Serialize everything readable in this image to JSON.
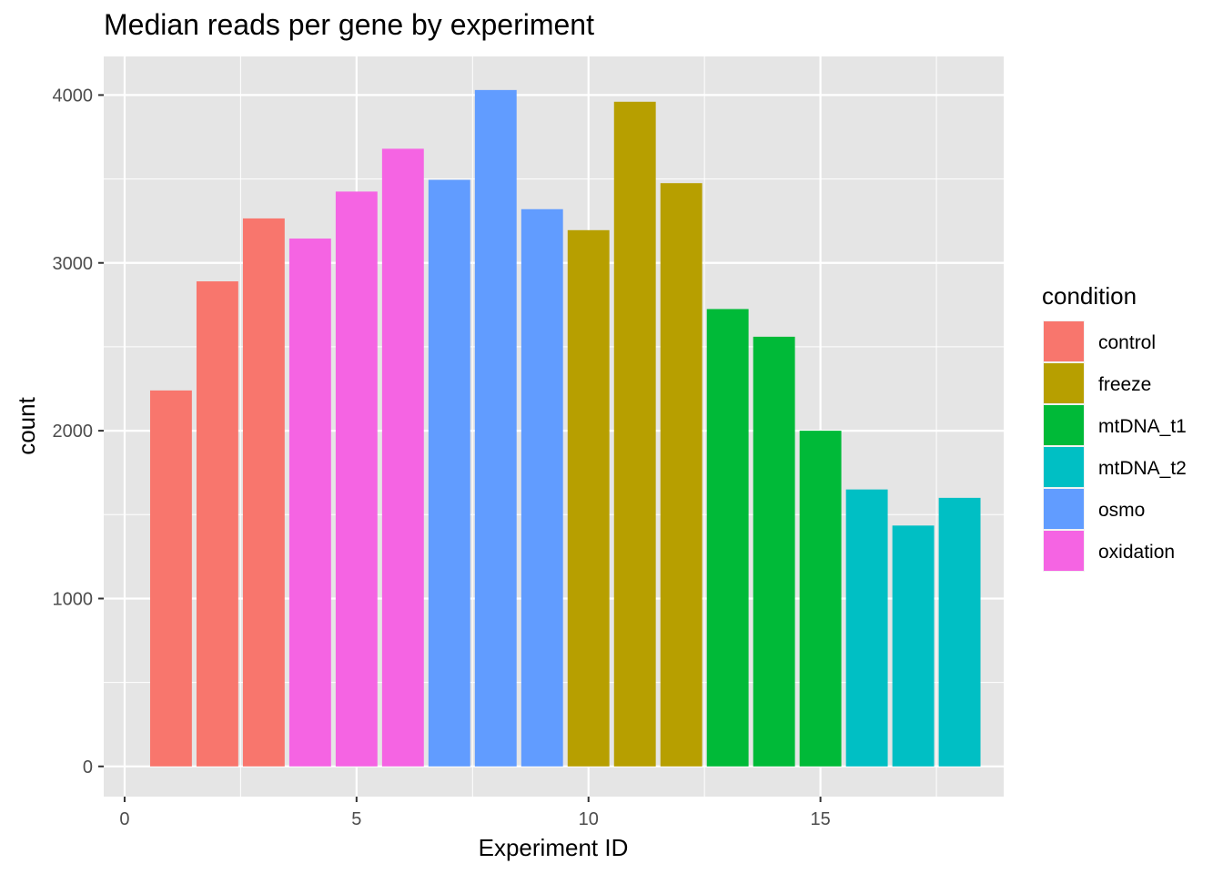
{
  "chart_data": {
    "type": "bar",
    "title": "Median reads per gene by experiment",
    "xlabel": "Experiment ID",
    "ylabel": "count",
    "xlim": [
      -0.45,
      18.95
    ],
    "ylim": [
      -180,
      4230
    ],
    "x_ticks": [
      0,
      5,
      10,
      15
    ],
    "y_ticks": [
      0,
      1000,
      2000,
      3000,
      4000
    ],
    "grid": true,
    "legend": {
      "title": "condition",
      "placement": "right",
      "entries": [
        {
          "name": "control",
          "color": "#F8766D"
        },
        {
          "name": "freeze",
          "color": "#B79F00"
        },
        {
          "name": "mtDNA_t1",
          "color": "#00BA38"
        },
        {
          "name": "mtDNA_t2",
          "color": "#00BFC4"
        },
        {
          "name": "osmo",
          "color": "#619CFF"
        },
        {
          "name": "oxidation",
          "color": "#F564E3"
        }
      ]
    },
    "bars": [
      {
        "x": 1,
        "value": 2240,
        "condition": "control"
      },
      {
        "x": 2,
        "value": 2890,
        "condition": "control"
      },
      {
        "x": 3,
        "value": 3265,
        "condition": "control"
      },
      {
        "x": 4,
        "value": 3145,
        "condition": "oxidation"
      },
      {
        "x": 5,
        "value": 3425,
        "condition": "oxidation"
      },
      {
        "x": 6,
        "value": 3680,
        "condition": "oxidation"
      },
      {
        "x": 7,
        "value": 3495,
        "condition": "osmo"
      },
      {
        "x": 8,
        "value": 4030,
        "condition": "osmo"
      },
      {
        "x": 9,
        "value": 3320,
        "condition": "osmo"
      },
      {
        "x": 10,
        "value": 3195,
        "condition": "freeze"
      },
      {
        "x": 11,
        "value": 3960,
        "condition": "freeze"
      },
      {
        "x": 12,
        "value": 3475,
        "condition": "freeze"
      },
      {
        "x": 13,
        "value": 2725,
        "condition": "mtDNA_t1"
      },
      {
        "x": 14,
        "value": 2560,
        "condition": "mtDNA_t1"
      },
      {
        "x": 15,
        "value": 2000,
        "condition": "mtDNA_t1"
      },
      {
        "x": 16,
        "value": 1650,
        "condition": "mtDNA_t2"
      },
      {
        "x": 17,
        "value": 1435,
        "condition": "mtDNA_t2"
      },
      {
        "x": 18,
        "value": 1600,
        "condition": "mtDNA_t2"
      }
    ]
  }
}
